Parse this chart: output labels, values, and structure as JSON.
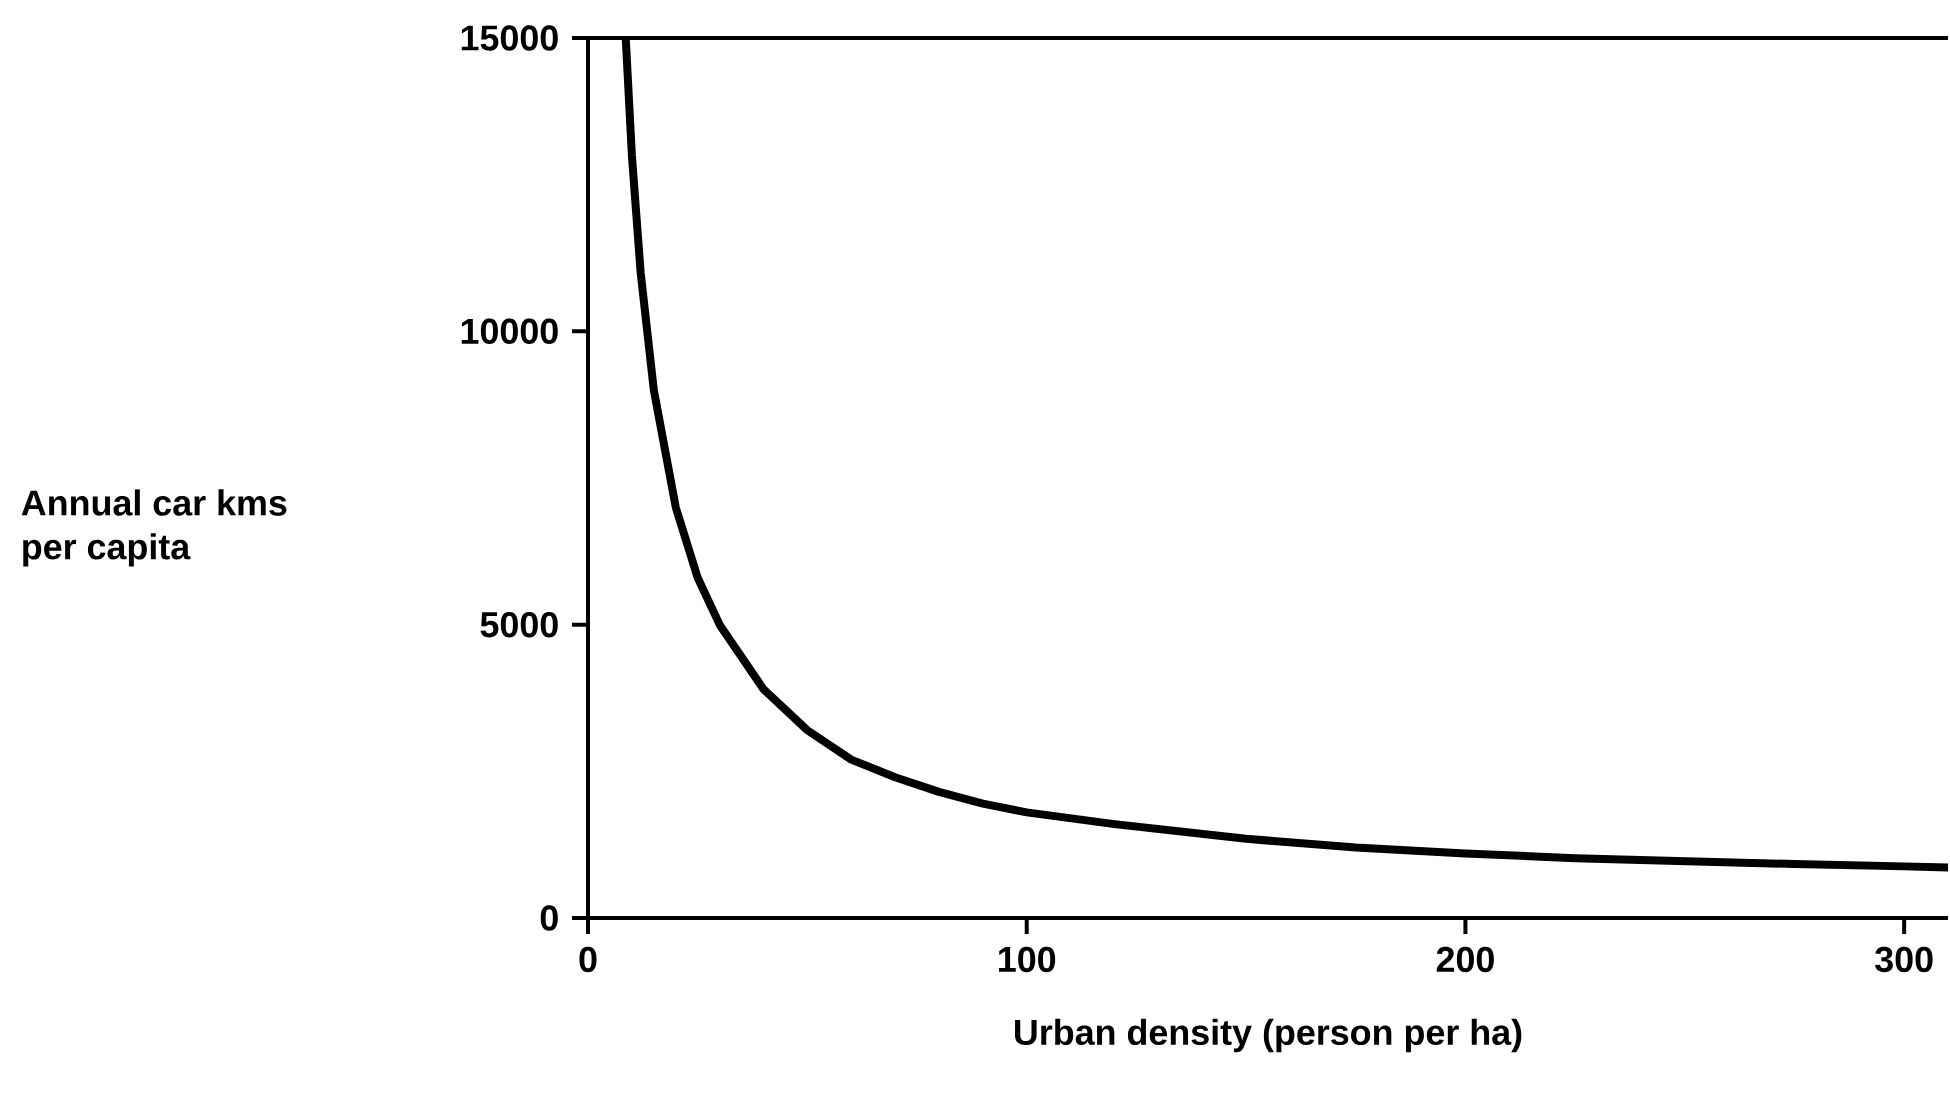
{
  "chart_data": {
    "type": "line",
    "xlabel": "Urban density (person per ha)",
    "ylabel": "Annual car kms\nper capita",
    "x": [
      8.6,
      10,
      12,
      15,
      20,
      25,
      30,
      40,
      50,
      60,
      70,
      80,
      90,
      100,
      120,
      150,
      175,
      200,
      225,
      250,
      275,
      300,
      310
    ],
    "values": [
      15000,
      13000,
      11000,
      9000,
      7000,
      5800,
      5000,
      3900,
      3200,
      2700,
      2400,
      2150,
      1950,
      1800,
      1600,
      1350,
      1200,
      1100,
      1020,
      970,
      920,
      880,
      860
    ],
    "color": "#000000",
    "xlim": [
      0,
      310
    ],
    "ylim": [
      0,
      15000
    ],
    "xticks": [
      0,
      100,
      200,
      300
    ],
    "yticks": [
      0,
      5000,
      10000,
      15000
    ],
    "marker": "none",
    "line_style": "solid"
  }
}
